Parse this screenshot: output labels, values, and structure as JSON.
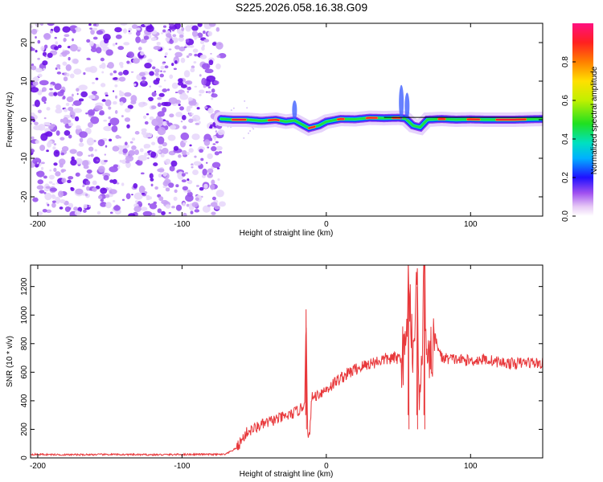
{
  "title": "S225.2026.058.16.38.G09",
  "chart_data": [
    {
      "type": "heatmap",
      "title": "S225.2026.058.16.38.G09",
      "xlabel": "Height of straight line (km)",
      "ylabel": "Frequency (Hz)",
      "xlim": [
        -205,
        150
      ],
      "ylim": [
        -25,
        25
      ],
      "xticks": [
        -200,
        -100,
        0,
        100
      ],
      "yticks": [
        -20,
        -10,
        0,
        10,
        20
      ],
      "colorbar": {
        "label": "Normalized spectral amplitude",
        "range": [
          0,
          1
        ],
        "ticks": [
          0.0,
          0.2,
          0.4,
          0.6,
          0.8
        ],
        "tick_labels": [
          "0.0",
          "0.2",
          "0.4",
          "0.6",
          "0.8"
        ]
      },
      "noise_region_x": [
        -205,
        -72
      ],
      "signal_line": {
        "x": [
          -73,
          -65,
          -55,
          -45,
          -35,
          -28,
          -22,
          -18,
          -12,
          -5,
          0,
          10,
          20,
          30,
          40,
          50,
          55,
          60,
          65,
          70,
          80,
          90,
          100,
          110,
          120,
          130,
          140,
          150
        ],
        "y": [
          0.2,
          0,
          0,
          -0.3,
          0,
          -0.5,
          -0.2,
          -1.0,
          -2.2,
          -1.5,
          -0.5,
          0.2,
          0.1,
          0.5,
          0.4,
          0.5,
          0.3,
          -1.5,
          -2.0,
          0,
          0.2,
          0,
          0.1,
          0,
          0,
          0,
          0.1,
          0.2
        ]
      }
    },
    {
      "type": "line",
      "xlabel": "Height of straight line (km)",
      "ylabel": "SNR (10 * v/v)",
      "xlim": [
        -205,
        150
      ],
      "ylim": [
        0,
        1350
      ],
      "xticks": [
        -200,
        -100,
        0,
        100
      ],
      "yticks": [
        0,
        200,
        400,
        600,
        800,
        1000,
        1200
      ],
      "series": [
        {
          "name": "SNR",
          "color": "#e8383b",
          "x": [
            -205,
            -180,
            -150,
            -120,
            -90,
            -70,
            -62,
            -55,
            -45,
            -35,
            -25,
            -18,
            -15,
            -14,
            -13,
            -12,
            -10,
            -5,
            0,
            10,
            20,
            30,
            40,
            50,
            55,
            57,
            60,
            63,
            65,
            68,
            70,
            75,
            80,
            90,
            100,
            110,
            120,
            130,
            140,
            150
          ],
          "y": [
            25,
            22,
            24,
            22,
            25,
            24,
            70,
            180,
            230,
            270,
            300,
            340,
            380,
            1040,
            150,
            120,
            420,
            450,
            480,
            560,
            620,
            660,
            690,
            700,
            720,
            1280,
            760,
            1200,
            300,
            1350,
            560,
            850,
            700,
            690,
            680,
            690,
            670,
            660,
            670,
            660
          ]
        }
      ]
    }
  ],
  "colors": {
    "snr_line": "#e8383b",
    "noise": "#7a22e8",
    "frame": "#000000"
  }
}
